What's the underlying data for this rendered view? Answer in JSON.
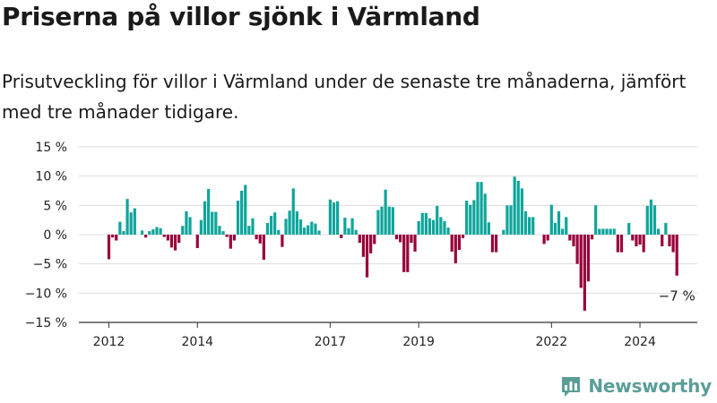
{
  "header": {
    "title": "Priserna på villor sjönk i Värmland",
    "subtitle": "Prisutveckling för villor i Värmland under de senaste tre månaderna, jämfört med tre månader tidigare."
  },
  "brand": {
    "name": "Newsworthy"
  },
  "colors": {
    "positive": "#0ea59b",
    "negative": "#98003b",
    "grid": "#dddddd",
    "axis": "#333333",
    "brand": "#5b9e98"
  },
  "chart_data": {
    "type": "bar",
    "ylim": [
      -15,
      15
    ],
    "yticks": [
      15,
      10,
      5,
      0,
      -5,
      -10,
      -15
    ],
    "ytick_labels": [
      "15 %",
      "10 %",
      "5 %",
      "0 %",
      "−5 %",
      "−10 %",
      "−15 %"
    ],
    "xtick_labels": [
      "2012",
      "2014",
      "2017",
      "2019",
      "2022",
      "2024"
    ],
    "xtick_index": [
      0,
      24,
      60,
      84,
      120,
      144
    ],
    "grid": true,
    "last_label": "−7 %",
    "values": [
      -4.2,
      -0.5,
      -1.0,
      2.2,
      0.6,
      6.1,
      3.8,
      4.5,
      0,
      0.7,
      -0.5,
      0.6,
      0.9,
      1.3,
      1.1,
      -0.4,
      -1.0,
      -2.2,
      -2.7,
      -1.4,
      1.5,
      4.0,
      3.0,
      0,
      -2.3,
      2.5,
      5.7,
      7.8,
      3.9,
      3.9,
      1.5,
      0.6,
      -0.4,
      -2.4,
      -1.0,
      5.8,
      7.5,
      8.5,
      1.5,
      2.8,
      -0.8,
      -1.5,
      -4.3,
      2.0,
      3.2,
      3.8,
      0.8,
      -2.1,
      2.7,
      4.1,
      7.9,
      4.0,
      2.6,
      1.2,
      1.6,
      2.2,
      1.9,
      0.7,
      0,
      0,
      6.0,
      5.5,
      5.7,
      -0.6,
      2.9,
      1.1,
      2.8,
      0.8,
      -1.4,
      -3.8,
      -7.3,
      -3.2,
      -1.6,
      4.2,
      4.8,
      7.7,
      4.8,
      4.7,
      -0.8,
      -1.3,
      -6.4,
      -6.4,
      -1.4,
      -2.9,
      2.3,
      3.7,
      3.7,
      2.8,
      2.5,
      4.9,
      3.0,
      2.3,
      1.2,
      -2.9,
      -4.9,
      -2.6,
      -0.6,
      5.8,
      5.1,
      5.9,
      9.0,
      9.0,
      7.0,
      2.1,
      -3.0,
      -3.0,
      0,
      0.8,
      5.0,
      5.0,
      9.9,
      9.2,
      7.9,
      4.0,
      3.0,
      3.0,
      0,
      0,
      -1.6,
      -1.0,
      5.1,
      2.0,
      4.0,
      1.0,
      3.0,
      -1.0,
      -2.0,
      -5.0,
      -9.1,
      -13.0,
      -8.0,
      -0.8,
      5.0,
      1.0,
      1.0,
      1.0,
      1.0,
      1.0,
      -3.0,
      -3.0,
      0,
      2.0,
      -1.0,
      -2.0,
      -1.7,
      -3.0,
      4.9,
      6.0,
      5.0,
      1.0,
      -2.0,
      2.0,
      -2.0,
      -3.0,
      -7.0
    ]
  }
}
